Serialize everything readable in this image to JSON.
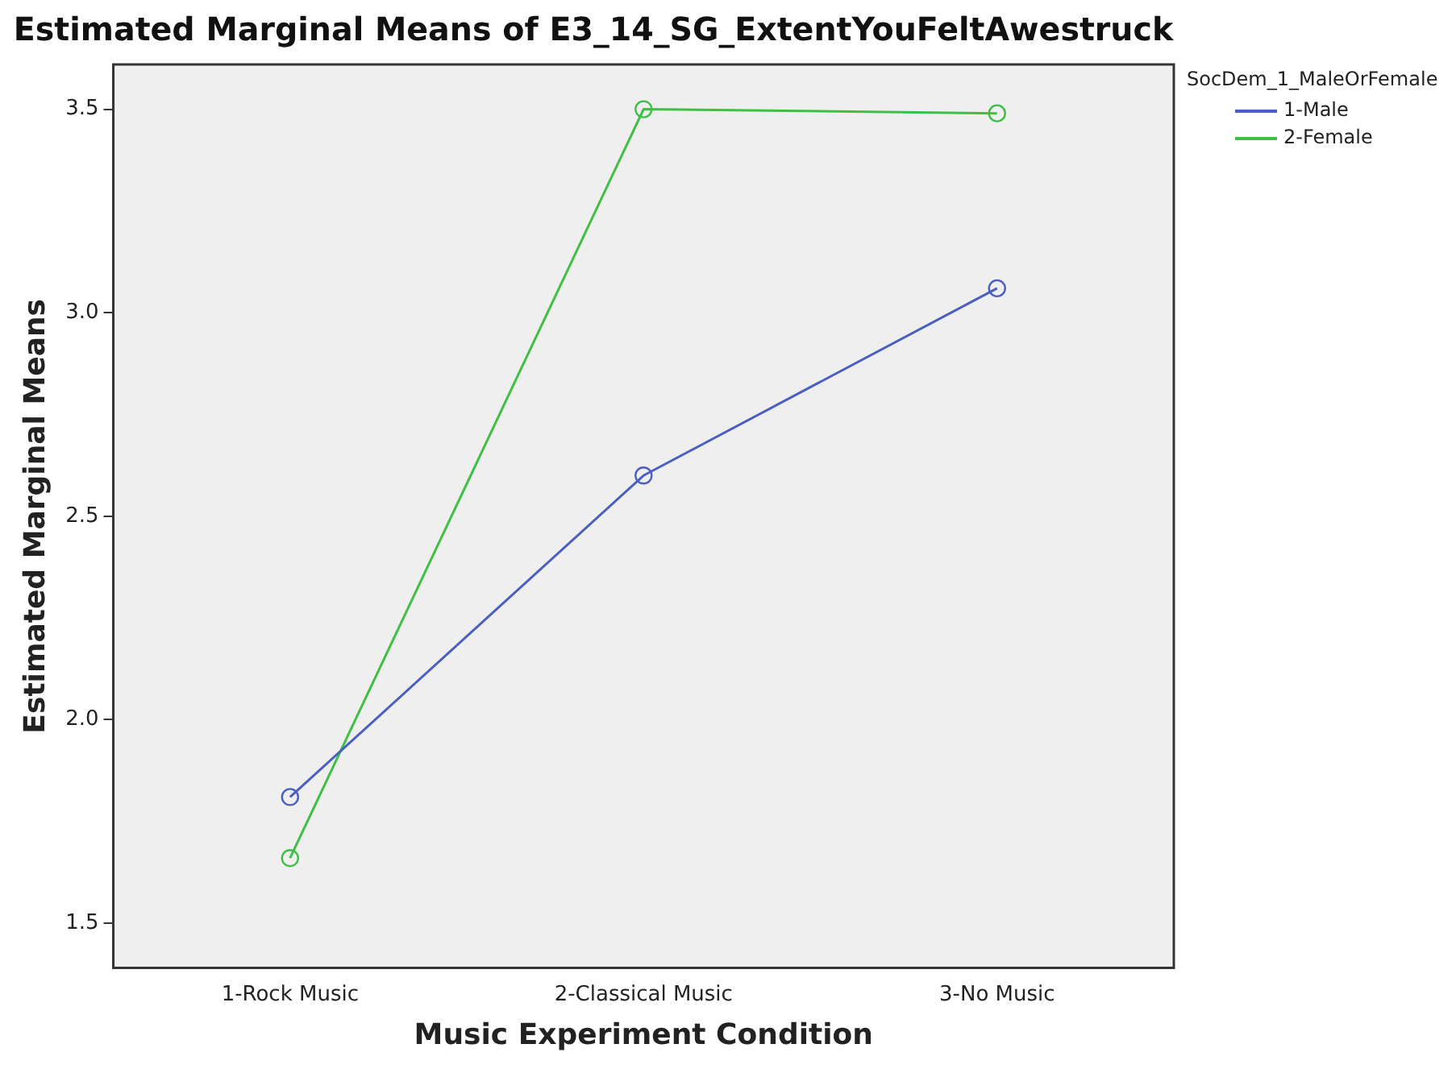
{
  "chart_data": {
    "type": "line",
    "title": "Estimated Marginal Means of E3_14_SG_ExtentYouFeltAwestruck",
    "xlabel": "Music Experiment Condition",
    "ylabel": "Estimated Marginal Means",
    "legend_title": "SocDem_1_MaleOrFemale",
    "categories": [
      "1-Rock Music",
      "2-Classical Music",
      "3-No Music"
    ],
    "series": [
      {
        "name": "1-Male",
        "color": "#4a5fc1",
        "values": [
          1.81,
          2.6,
          3.06
        ]
      },
      {
        "name": "2-Female",
        "color": "#3fbf46",
        "values": [
          1.66,
          3.5,
          3.49
        ]
      }
    ],
    "ylim": [
      1.39,
      3.61
    ],
    "yticks": [
      {
        "value": 1.5,
        "label": "1.5"
      },
      {
        "value": 2,
        "label": "2.0"
      },
      {
        "value": 2.5,
        "label": "2.5"
      },
      {
        "value": 3,
        "label": "3.0"
      },
      {
        "value": 3.5,
        "label": "3.5"
      }
    ],
    "grid": false,
    "legend": "top right",
    "marker": "circle",
    "line_style": "solid"
  }
}
